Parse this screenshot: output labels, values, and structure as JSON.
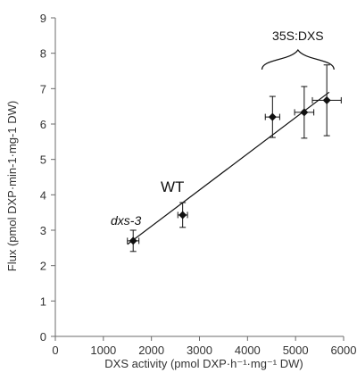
{
  "chart_data": {
    "type": "scatter",
    "title": "",
    "xlabel": "DXS activity (pmol DXP·h⁻¹·mg⁻¹ DW)",
    "ylabel": "Flux (pmol DXP·min-1·mg-1 DW)",
    "xlim": [
      0,
      6000
    ],
    "ylim": [
      0,
      9
    ],
    "x_ticks": [
      "0",
      "1000",
      "2000",
      "3000",
      "4000",
      "5000",
      "6000"
    ],
    "y_ticks": [
      "0",
      "1",
      "2",
      "3",
      "4",
      "5",
      "6",
      "7",
      "8",
      "9"
    ],
    "grid": false,
    "legend": "none",
    "points": [
      {
        "label": "dxs-3",
        "x": 1620,
        "y": 2.7,
        "x_err": 120,
        "y_err": 0.3
      },
      {
        "label": "WT",
        "x": 2650,
        "y": 3.43,
        "x_err": 100,
        "y_err": 0.35
      },
      {
        "label": "35S:DXS",
        "x": 4520,
        "y": 6.2,
        "x_err": 150,
        "y_err": 0.58
      },
      {
        "label": "35S:DXS",
        "x": 5180,
        "y": 6.33,
        "x_err": 200,
        "y_err": 0.73
      },
      {
        "label": "35S:DXS",
        "x": 5650,
        "y": 6.67,
        "x_err": 300,
        "y_err": 1.0
      }
    ],
    "trendline": {
      "x": [
        1500,
        5700
      ],
      "y": [
        2.6,
        6.9
      ]
    },
    "annotations": [
      {
        "text": "dxs-3",
        "italic": true
      },
      {
        "text": "WT",
        "italic": false
      },
      {
        "text": "35S:DXS",
        "italic": false,
        "bracket": [
          4300,
          5800
        ]
      }
    ],
    "colors": {
      "points": "#111111",
      "axis": "#6b6b6b",
      "text": "#333333"
    }
  }
}
